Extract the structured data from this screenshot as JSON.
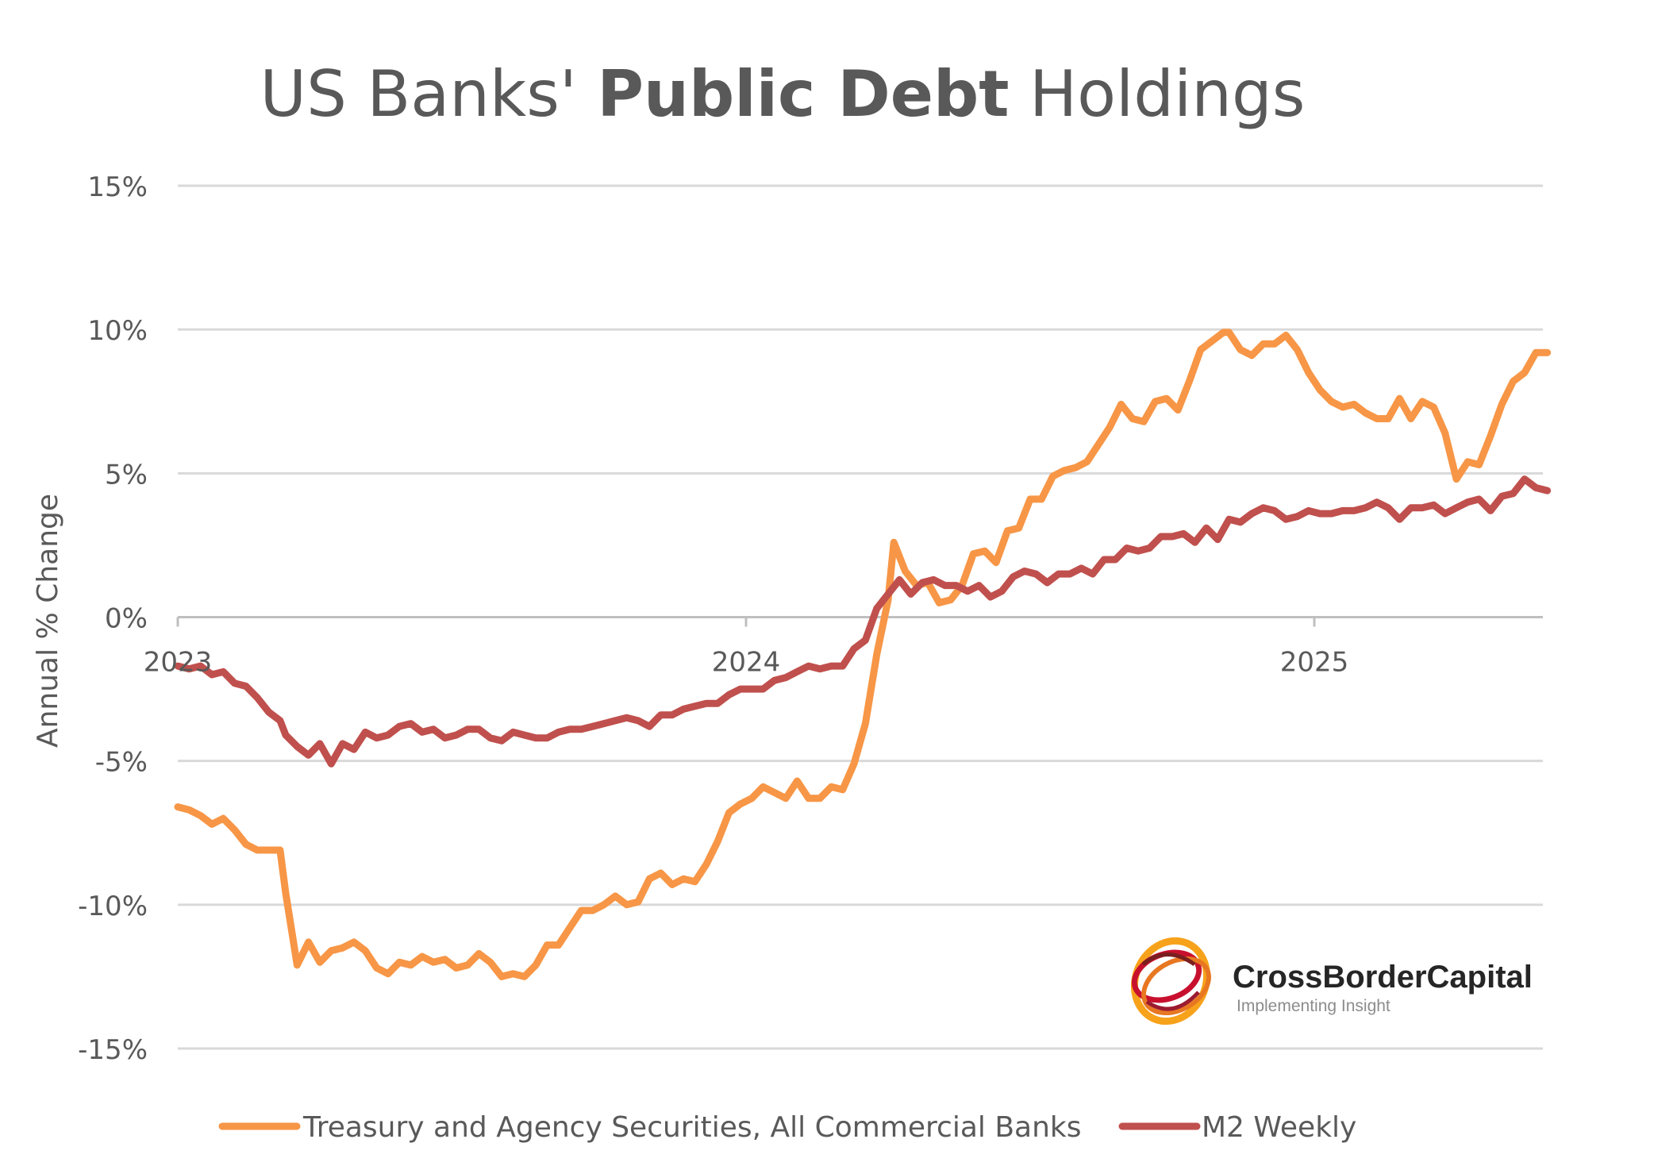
{
  "title": {
    "prefix": "US Banks'",
    "emphasis": "Public Debt",
    "suffix": "Holdings"
  },
  "logo": {
    "name": "CrossBorderCapital",
    "tagline": "Implementing Insight"
  },
  "chart_data": {
    "type": "line",
    "ylabel": "Annual % Change",
    "xlabel": "",
    "ylim": [
      -15,
      15
    ],
    "xlim": [
      2023.0,
      2025.4
    ],
    "yticks": [
      15,
      10,
      5,
      0,
      -5,
      -10,
      -15
    ],
    "ytick_labels": [
      "15%",
      "10%",
      "5%",
      "0%",
      "-5%",
      "-10%",
      "-15%"
    ],
    "xticks": [
      2023,
      2024,
      2025
    ],
    "xtick_labels": [
      "2023",
      "2024",
      "2025"
    ],
    "grid": true,
    "legend_position": "bottom",
    "series": [
      {
        "name": "Treasury and Agency Securities, All Commercial Banks",
        "color": "#F79646",
        "points": [
          [
            2023.0,
            -6.6
          ],
          [
            2023.02,
            -6.7
          ],
          [
            2023.04,
            -6.9
          ],
          [
            2023.06,
            -7.2
          ],
          [
            2023.08,
            -7.0
          ],
          [
            2023.1,
            -7.4
          ],
          [
            2023.12,
            -7.9
          ],
          [
            2023.14,
            -8.1
          ],
          [
            2023.16,
            -8.1
          ],
          [
            2023.18,
            -8.1
          ],
          [
            2023.19,
            -9.6
          ],
          [
            2023.21,
            -12.1
          ],
          [
            2023.23,
            -11.3
          ],
          [
            2023.25,
            -12.0
          ],
          [
            2023.27,
            -11.6
          ],
          [
            2023.29,
            -11.5
          ],
          [
            2023.31,
            -11.3
          ],
          [
            2023.33,
            -11.6
          ],
          [
            2023.35,
            -12.2
          ],
          [
            2023.37,
            -12.4
          ],
          [
            2023.39,
            -12.0
          ],
          [
            2023.41,
            -12.1
          ],
          [
            2023.43,
            -11.8
          ],
          [
            2023.45,
            -12.0
          ],
          [
            2023.47,
            -11.9
          ],
          [
            2023.49,
            -12.2
          ],
          [
            2023.51,
            -12.1
          ],
          [
            2023.53,
            -11.7
          ],
          [
            2023.55,
            -12.0
          ],
          [
            2023.57,
            -12.5
          ],
          [
            2023.59,
            -12.4
          ],
          [
            2023.61,
            -12.5
          ],
          [
            2023.63,
            -12.1
          ],
          [
            2023.65,
            -11.4
          ],
          [
            2023.67,
            -11.4
          ],
          [
            2023.69,
            -10.8
          ],
          [
            2023.71,
            -10.2
          ],
          [
            2023.73,
            -10.2
          ],
          [
            2023.75,
            -10.0
          ],
          [
            2023.77,
            -9.7
          ],
          [
            2023.79,
            -10.0
          ],
          [
            2023.81,
            -9.9
          ],
          [
            2023.83,
            -9.1
          ],
          [
            2023.85,
            -8.9
          ],
          [
            2023.87,
            -9.3
          ],
          [
            2023.89,
            -9.1
          ],
          [
            2023.91,
            -9.2
          ],
          [
            2023.93,
            -8.6
          ],
          [
            2023.95,
            -7.8
          ],
          [
            2023.97,
            -6.8
          ],
          [
            2023.99,
            -6.5
          ],
          [
            2024.01,
            -6.3
          ],
          [
            2024.03,
            -5.9
          ],
          [
            2024.05,
            -6.1
          ],
          [
            2024.07,
            -6.3
          ],
          [
            2024.09,
            -5.7
          ],
          [
            2024.11,
            -6.3
          ],
          [
            2024.13,
            -6.3
          ],
          [
            2024.15,
            -5.9
          ],
          [
            2024.17,
            -6.0
          ],
          [
            2024.19,
            -5.1
          ],
          [
            2024.21,
            -3.7
          ],
          [
            2024.23,
            -1.3
          ],
          [
            2024.25,
            0.6
          ],
          [
            2024.26,
            2.6
          ],
          [
            2024.28,
            1.6
          ],
          [
            2024.3,
            1.1
          ],
          [
            2024.32,
            1.2
          ],
          [
            2024.34,
            0.5
          ],
          [
            2024.36,
            0.6
          ],
          [
            2024.38,
            1.1
          ],
          [
            2024.4,
            2.2
          ],
          [
            2024.42,
            2.3
          ],
          [
            2024.44,
            1.9
          ],
          [
            2024.46,
            3.0
          ],
          [
            2024.48,
            3.1
          ],
          [
            2024.5,
            4.1
          ],
          [
            2024.52,
            4.1
          ],
          [
            2024.54,
            4.9
          ],
          [
            2024.56,
            5.1
          ],
          [
            2024.58,
            5.2
          ],
          [
            2024.6,
            5.4
          ],
          [
            2024.62,
            6.0
          ],
          [
            2024.64,
            6.6
          ],
          [
            2024.66,
            7.4
          ],
          [
            2024.68,
            6.9
          ],
          [
            2024.7,
            6.8
          ],
          [
            2024.72,
            7.5
          ],
          [
            2024.74,
            7.6
          ],
          [
            2024.76,
            7.2
          ],
          [
            2024.78,
            8.2
          ],
          [
            2024.8,
            9.3
          ],
          [
            2024.82,
            9.6
          ],
          [
            2024.84,
            9.9
          ],
          [
            2024.85,
            9.9
          ],
          [
            2024.87,
            9.3
          ],
          [
            2024.89,
            9.1
          ],
          [
            2024.91,
            9.5
          ],
          [
            2024.93,
            9.5
          ],
          [
            2024.95,
            9.8
          ],
          [
            2024.97,
            9.3
          ],
          [
            2024.99,
            8.5
          ],
          [
            2025.01,
            7.9
          ],
          [
            2025.03,
            7.5
          ],
          [
            2025.05,
            7.3
          ],
          [
            2025.07,
            7.4
          ],
          [
            2025.09,
            7.1
          ],
          [
            2025.11,
            6.9
          ],
          [
            2025.13,
            6.9
          ],
          [
            2025.15,
            7.6
          ],
          [
            2025.17,
            6.9
          ],
          [
            2025.19,
            7.5
          ],
          [
            2025.21,
            7.3
          ],
          [
            2025.23,
            6.4
          ],
          [
            2025.25,
            4.8
          ],
          [
            2025.27,
            5.4
          ],
          [
            2025.29,
            5.3
          ],
          [
            2025.31,
            6.3
          ],
          [
            2025.33,
            7.4
          ],
          [
            2025.35,
            8.2
          ],
          [
            2025.37,
            8.5
          ],
          [
            2025.39,
            9.2
          ],
          [
            2025.41,
            9.2
          ]
        ]
      },
      {
        "name": "M2 Weekly",
        "color": "#C0504D",
        "points": [
          [
            2023.0,
            -1.7
          ],
          [
            2023.02,
            -1.8
          ],
          [
            2023.04,
            -1.7
          ],
          [
            2023.06,
            -2.0
          ],
          [
            2023.08,
            -1.9
          ],
          [
            2023.1,
            -2.3
          ],
          [
            2023.12,
            -2.4
          ],
          [
            2023.14,
            -2.8
          ],
          [
            2023.16,
            -3.3
          ],
          [
            2023.18,
            -3.6
          ],
          [
            2023.19,
            -4.1
          ],
          [
            2023.21,
            -4.5
          ],
          [
            2023.23,
            -4.8
          ],
          [
            2023.25,
            -4.4
          ],
          [
            2023.27,
            -5.1
          ],
          [
            2023.29,
            -4.4
          ],
          [
            2023.31,
            -4.6
          ],
          [
            2023.33,
            -4.0
          ],
          [
            2023.35,
            -4.2
          ],
          [
            2023.37,
            -4.1
          ],
          [
            2023.39,
            -3.8
          ],
          [
            2023.41,
            -3.7
          ],
          [
            2023.43,
            -4.0
          ],
          [
            2023.45,
            -3.9
          ],
          [
            2023.47,
            -4.2
          ],
          [
            2023.49,
            -4.1
          ],
          [
            2023.51,
            -3.9
          ],
          [
            2023.53,
            -3.9
          ],
          [
            2023.55,
            -4.2
          ],
          [
            2023.57,
            -4.3
          ],
          [
            2023.59,
            -4.0
          ],
          [
            2023.61,
            -4.1
          ],
          [
            2023.63,
            -4.2
          ],
          [
            2023.65,
            -4.2
          ],
          [
            2023.67,
            -4.0
          ],
          [
            2023.69,
            -3.9
          ],
          [
            2023.71,
            -3.9
          ],
          [
            2023.73,
            -3.8
          ],
          [
            2023.75,
            -3.7
          ],
          [
            2023.77,
            -3.6
          ],
          [
            2023.79,
            -3.5
          ],
          [
            2023.81,
            -3.6
          ],
          [
            2023.83,
            -3.8
          ],
          [
            2023.85,
            -3.4
          ],
          [
            2023.87,
            -3.4
          ],
          [
            2023.89,
            -3.2
          ],
          [
            2023.91,
            -3.1
          ],
          [
            2023.93,
            -3.0
          ],
          [
            2023.95,
            -3.0
          ],
          [
            2023.97,
            -2.7
          ],
          [
            2023.99,
            -2.5
          ],
          [
            2024.01,
            -2.5
          ],
          [
            2024.03,
            -2.5
          ],
          [
            2024.05,
            -2.2
          ],
          [
            2024.07,
            -2.1
          ],
          [
            2024.09,
            -1.9
          ],
          [
            2024.11,
            -1.7
          ],
          [
            2024.13,
            -1.8
          ],
          [
            2024.15,
            -1.7
          ],
          [
            2024.17,
            -1.7
          ],
          [
            2024.19,
            -1.1
          ],
          [
            2024.21,
            -0.8
          ],
          [
            2024.23,
            0.3
          ],
          [
            2024.25,
            0.8
          ],
          [
            2024.27,
            1.3
          ],
          [
            2024.29,
            0.8
          ],
          [
            2024.31,
            1.2
          ],
          [
            2024.33,
            1.3
          ],
          [
            2024.35,
            1.1
          ],
          [
            2024.37,
            1.1
          ],
          [
            2024.39,
            0.9
          ],
          [
            2024.41,
            1.1
          ],
          [
            2024.43,
            0.7
          ],
          [
            2024.45,
            0.9
          ],
          [
            2024.47,
            1.4
          ],
          [
            2024.49,
            1.6
          ],
          [
            2024.51,
            1.5
          ],
          [
            2024.53,
            1.2
          ],
          [
            2024.55,
            1.5
          ],
          [
            2024.57,
            1.5
          ],
          [
            2024.59,
            1.7
          ],
          [
            2024.61,
            1.5
          ],
          [
            2024.63,
            2.0
          ],
          [
            2024.65,
            2.0
          ],
          [
            2024.67,
            2.4
          ],
          [
            2024.69,
            2.3
          ],
          [
            2024.71,
            2.4
          ],
          [
            2024.73,
            2.8
          ],
          [
            2024.75,
            2.8
          ],
          [
            2024.77,
            2.9
          ],
          [
            2024.79,
            2.6
          ],
          [
            2024.81,
            3.1
          ],
          [
            2024.83,
            2.7
          ],
          [
            2024.85,
            3.4
          ],
          [
            2024.87,
            3.3
          ],
          [
            2024.89,
            3.6
          ],
          [
            2024.91,
            3.8
          ],
          [
            2024.93,
            3.7
          ],
          [
            2024.95,
            3.4
          ],
          [
            2024.97,
            3.5
          ],
          [
            2024.99,
            3.7
          ],
          [
            2025.01,
            3.6
          ],
          [
            2025.03,
            3.6
          ],
          [
            2025.05,
            3.7
          ],
          [
            2025.07,
            3.7
          ],
          [
            2025.09,
            3.8
          ],
          [
            2025.11,
            4.0
          ],
          [
            2025.13,
            3.8
          ],
          [
            2025.15,
            3.4
          ],
          [
            2025.17,
            3.8
          ],
          [
            2025.19,
            3.8
          ],
          [
            2025.21,
            3.9
          ],
          [
            2025.23,
            3.6
          ],
          [
            2025.25,
            3.8
          ],
          [
            2025.27,
            4.0
          ],
          [
            2025.29,
            4.1
          ],
          [
            2025.31,
            3.7
          ],
          [
            2025.33,
            4.2
          ],
          [
            2025.35,
            4.3
          ],
          [
            2025.37,
            4.8
          ],
          [
            2025.39,
            4.5
          ],
          [
            2025.41,
            4.4
          ]
        ]
      }
    ]
  }
}
